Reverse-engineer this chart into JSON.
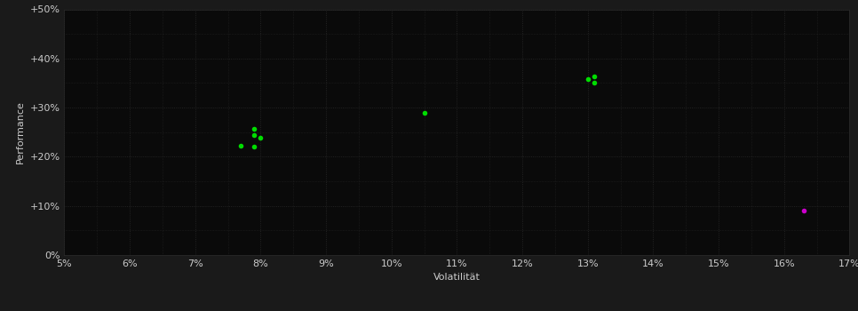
{
  "background_color": "#1a1a1a",
  "plot_bg_color": "#0a0a0a",
  "grid_color": "#2a2a2a",
  "grid_linestyle": ":",
  "xlabel": "Volatilität",
  "ylabel": "Performance",
  "xlim": [
    0.05,
    0.17
  ],
  "ylim": [
    0.0,
    0.5
  ],
  "xticks": [
    0.05,
    0.06,
    0.07,
    0.08,
    0.09,
    0.1,
    0.11,
    0.12,
    0.13,
    0.14,
    0.15,
    0.16,
    0.17
  ],
  "yticks": [
    0.0,
    0.1,
    0.2,
    0.3,
    0.4,
    0.5
  ],
  "minor_yticks": [
    0.05,
    0.15,
    0.25,
    0.35,
    0.45
  ],
  "green_points": [
    [
      0.077,
      0.222
    ],
    [
      0.079,
      0.22
    ],
    [
      0.079,
      0.244
    ],
    [
      0.079,
      0.256
    ],
    [
      0.08,
      0.238
    ],
    [
      0.105,
      0.29
    ],
    [
      0.13,
      0.358
    ],
    [
      0.131,
      0.35
    ],
    [
      0.131,
      0.364
    ]
  ],
  "magenta_points": [
    [
      0.163,
      0.09
    ]
  ],
  "green_color": "#00dd00",
  "magenta_color": "#cc00cc",
  "text_color": "#cccccc",
  "marker_size": 4,
  "label_fontsize": 8,
  "tick_fontsize": 8
}
